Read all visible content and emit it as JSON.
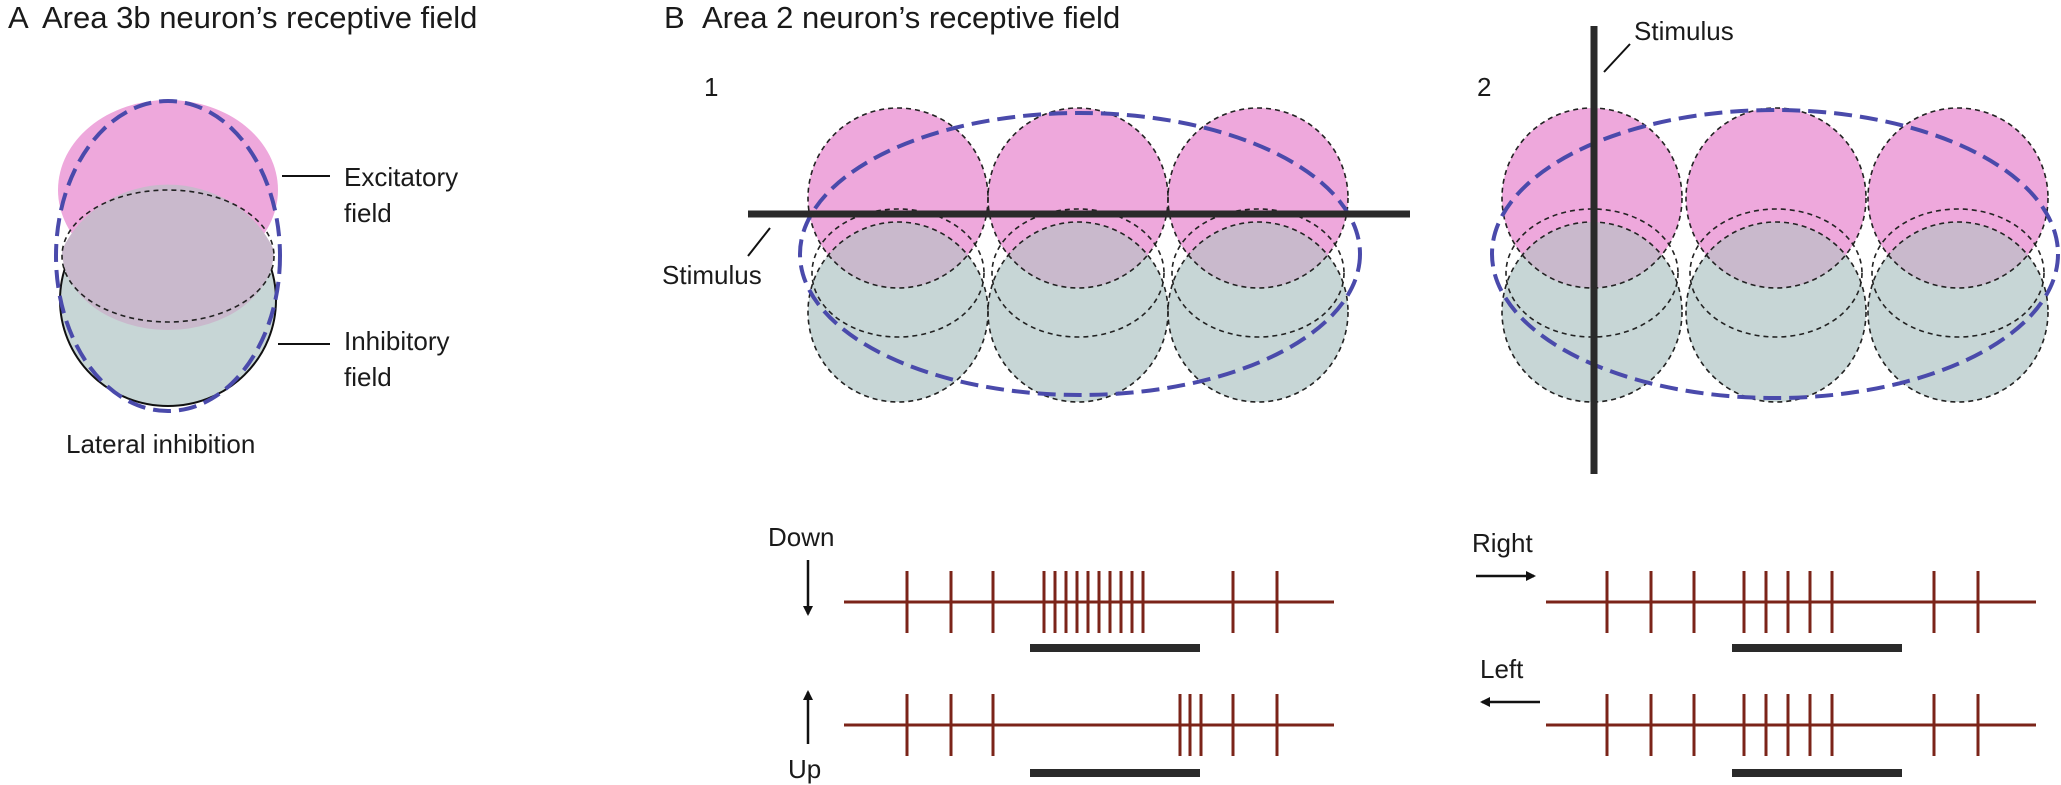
{
  "panel_a": {
    "letter": "A",
    "title": "Area 3b neuron’s receptive field",
    "excitatory_label": [
      "Excitatory",
      "field"
    ],
    "inhibitory_label": [
      "Inhibitory",
      "field"
    ],
    "caption": "Lateral inhibition"
  },
  "panel_b": {
    "letter": "B",
    "title": "Area 2 neuron’s receptive field",
    "sub1": {
      "number": "1",
      "stimulus_label": "Stimulus"
    },
    "sub2": {
      "number": "2",
      "stimulus_label": "Stimulus"
    },
    "traces1": {
      "down_label": "Down",
      "up_label": "Up"
    },
    "traces2": {
      "right_label": "Right",
      "left_label": "Left"
    }
  },
  "colors": {
    "excitatory": "#eea8dc",
    "inhibitory": "#c7d6d6",
    "overlap": "#c9b9cc",
    "receptive_field_outline": "#4a4aab",
    "spike": "#7b2419",
    "stimulus_bar": "#2a2a2a"
  }
}
